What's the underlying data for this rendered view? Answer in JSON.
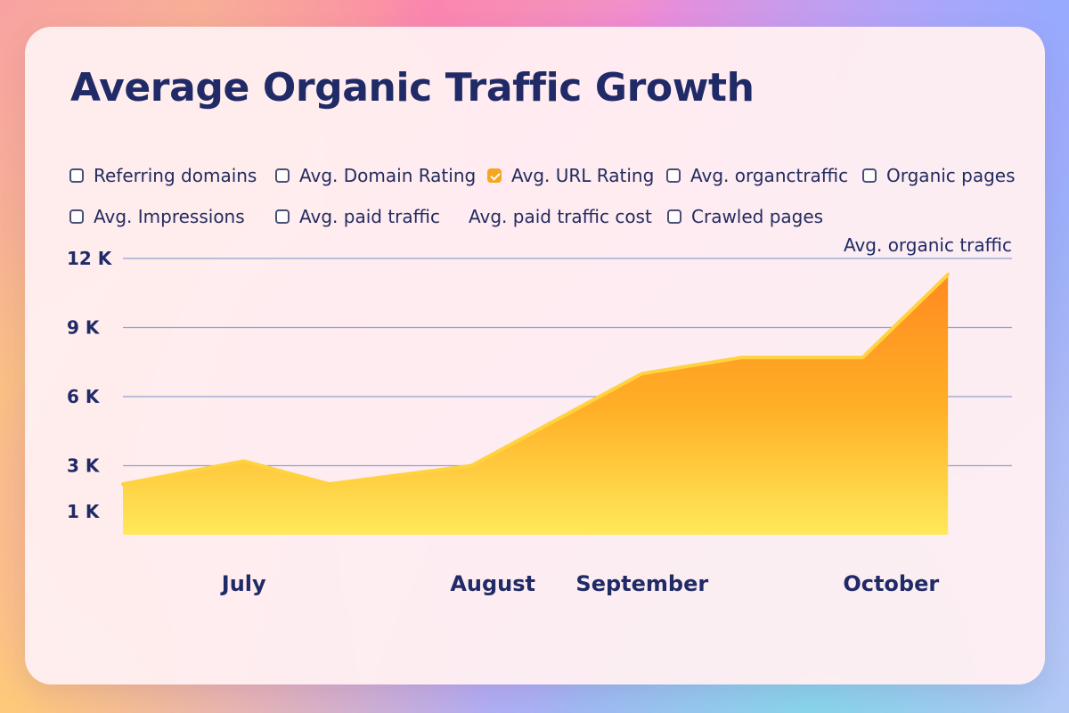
{
  "title": "Average Organic Traffic Growth",
  "legend": {
    "row1": [
      {
        "label": "Referring domains",
        "checked": false
      },
      {
        "label": "Avg. Domain Rating",
        "checked": false
      },
      {
        "label": "Avg. URL Rating",
        "checked": true
      },
      {
        "label": "Avg. organctraffic",
        "checked": false
      },
      {
        "label": "Organic pages",
        "checked": false
      }
    ],
    "row2": [
      {
        "label": "Avg. Impressions",
        "checked": false
      },
      {
        "label": "Avg. paid traffic",
        "checked": false
      },
      {
        "label": "Avg. paid traffic cost",
        "checked": null
      },
      {
        "label": "Crawled pages",
        "checked": false
      }
    ]
  },
  "colors": {
    "title": "#202a67",
    "grid": "#8ea2cf",
    "fill_top": "#ff8a1f",
    "fill_mid": "#ffb027",
    "fill_bottom": "#ffe95a",
    "stroke": "#ffd23f",
    "checked_box": "#f5a623"
  },
  "chart_data": {
    "type": "area",
    "title": "Average Organic Traffic Growth",
    "series": [
      {
        "name": "Avg. organic traffic",
        "x": [
          0,
          0.85,
          1.45,
          2.45,
          3.65,
          4.35,
          5.2,
          5.8
        ],
        "values": [
          2200,
          3200,
          2200,
          3000,
          7000,
          7700,
          7700,
          11300
        ]
      }
    ],
    "categories": [
      "July",
      "August",
      "September",
      "October"
    ],
    "category_positions": [
      0.85,
      2.6,
      3.65,
      5.4
    ],
    "xlim": [
      0,
      6.25
    ],
    "ylim": [
      0,
      12000
    ],
    "yticks": [
      1000,
      3000,
      6000,
      9000,
      12000
    ],
    "ytick_labels": [
      "1 K",
      "3 K",
      "6 K",
      "9 K",
      "12 K"
    ],
    "gridlines_at": [
      3000,
      6000,
      9000,
      12000
    ],
    "legend": {
      "position": "top-right",
      "entries": [
        "Avg. organic traffic"
      ]
    }
  }
}
